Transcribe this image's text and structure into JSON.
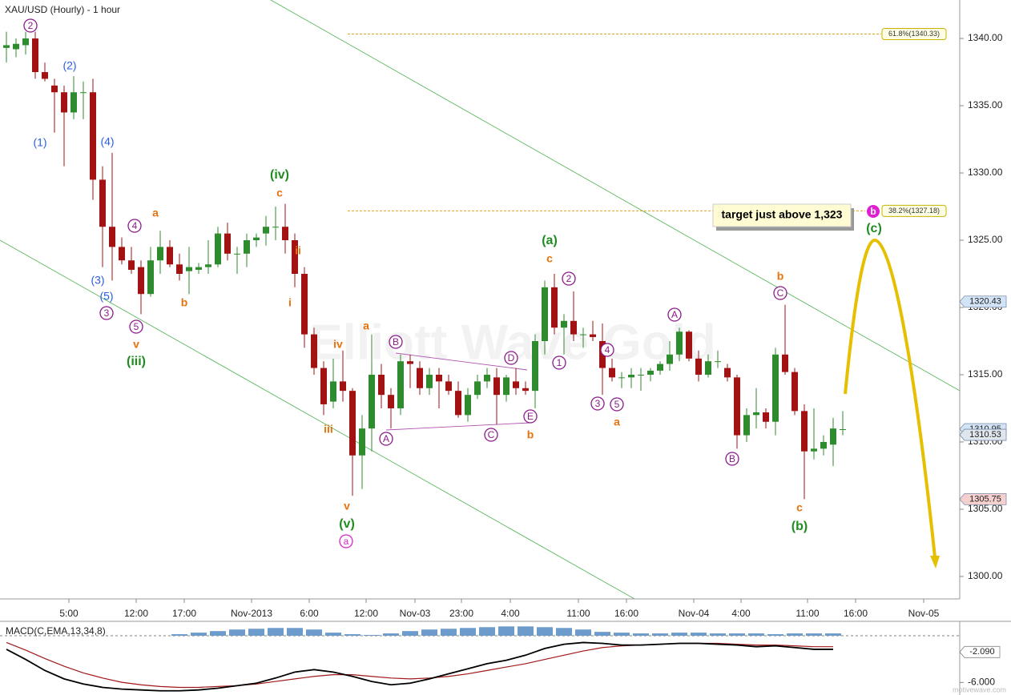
{
  "chart_data": [
    {
      "type": "candlestick",
      "title": "XAU/USD (Hourly) - 1 hour",
      "watermark": "Elliott Wave Gold",
      "credit": "motivewave.com",
      "callout": "target just above 1,323",
      "up_color": "#2e8b2e",
      "down_color": "#a31212",
      "ylim": [
        1298.33,
        1342.86
      ],
      "yticks": [
        {
          "value": 1300,
          "label": "1300.00"
        },
        {
          "value": 1305,
          "label": "1305.00"
        },
        {
          "value": 1310,
          "label": "1310.00"
        },
        {
          "value": 1315,
          "label": "1315.00"
        },
        {
          "value": 1320,
          "label": "1320.00"
        },
        {
          "value": 1325,
          "label": "1325.00"
        },
        {
          "value": 1330,
          "label": "1330.00"
        },
        {
          "value": 1335,
          "label": "1335.00"
        },
        {
          "value": 1340,
          "label": "1340.00"
        }
      ],
      "x_tick_labels": [
        "5:00",
        "12:00",
        "17:00",
        "Nov-2013",
        "6:00",
        "12:00",
        "Nov-03",
        "23:00",
        "4:00",
        "11:00",
        "16:00",
        "Nov-04",
        "4:00",
        "11:00",
        "16:00",
        "Nov-05"
      ],
      "open": [
        1339.3,
        1339.2,
        1339.5,
        1340,
        1337.5,
        1336.5,
        1336,
        1334.5,
        1336,
        1336,
        1329.5,
        1326,
        1324.5,
        1323.5,
        1323,
        1321,
        1323.5,
        1324.5,
        1323.2,
        1322.7,
        1322.8,
        1323,
        1323.2,
        1325.5,
        1324,
        1324,
        1325,
        1325.5,
        1326,
        1326,
        1325,
        1322.5,
        1318,
        1315.5,
        1313,
        1314.5,
        1313.8,
        1309,
        1311,
        1315,
        1313.5,
        1312.5,
        1316,
        1315.5,
        1314,
        1315,
        1314.5,
        1313.8,
        1312,
        1313.5,
        1314.5,
        1314.8,
        1313.5,
        1314.5,
        1314,
        1313.8,
        1317.5,
        1321.5,
        1318.5,
        1319,
        1318,
        1318,
        1317.5,
        1315.5,
        1314.8,
        1314.8,
        1315,
        1315,
        1315.3,
        1315.8,
        1316.5,
        1318.2,
        1316.2,
        1315,
        1316,
        1315.5,
        1314.8,
        1310.5,
        1312,
        1312.2,
        1311.5,
        1316.5,
        1315.2,
        1312.3,
        1309.3,
        1309.5,
        1309.8,
        1310.9
      ],
      "high": [
        1340.5,
        1340,
        1340.5,
        1340.5,
        1338.2,
        1337,
        1336.5,
        1337.2,
        1336.8,
        1337,
        1330.5,
        1331.5,
        1325.2,
        1324.5,
        1323.5,
        1324.5,
        1325.7,
        1325,
        1324,
        1324.5,
        1323.3,
        1325,
        1326,
        1326.3,
        1324.5,
        1325.5,
        1325.5,
        1326.8,
        1327.5,
        1327.7,
        1325.5,
        1323,
        1318.5,
        1316,
        1316.2,
        1316.8,
        1314,
        1312,
        1318,
        1315.8,
        1314,
        1316.5,
        1316.5,
        1316,
        1315.5,
        1315.5,
        1315,
        1314.5,
        1314,
        1315,
        1315.5,
        1315.5,
        1315,
        1315.5,
        1314.5,
        1318,
        1322,
        1322.5,
        1319.5,
        1321.2,
        1318.5,
        1319,
        1318.8,
        1316.2,
        1315.2,
        1315.5,
        1315.5,
        1315.5,
        1316,
        1317.5,
        1318.5,
        1318.3,
        1316.8,
        1316.5,
        1316.8,
        1315.8,
        1315,
        1312.5,
        1314,
        1312.5,
        1317,
        1320.2,
        1315.5,
        1312.8,
        1312.5,
        1310.5,
        1311.8,
        1312.3
      ],
      "low": [
        1338.2,
        1338.6,
        1338.8,
        1337,
        1336.8,
        1333,
        1330.5,
        1334,
        1334,
        1328,
        1323,
        1322,
        1323.2,
        1322.5,
        1319.5,
        1320.8,
        1322.5,
        1323,
        1322,
        1321,
        1322.5,
        1322.5,
        1323,
        1323.5,
        1322.5,
        1323,
        1324.5,
        1324.6,
        1325,
        1324,
        1321.5,
        1317,
        1315,
        1312,
        1312.5,
        1313,
        1306,
        1306.5,
        1309.3,
        1312.5,
        1311,
        1312,
        1314,
        1313.5,
        1313.5,
        1312.5,
        1313.5,
        1311.8,
        1311.5,
        1313.2,
        1314,
        1311.3,
        1313,
        1313.5,
        1313.5,
        1312.5,
        1316.5,
        1318,
        1316.5,
        1317.5,
        1317,
        1317.5,
        1313.5,
        1314.5,
        1314,
        1314,
        1313.8,
        1314.5,
        1315,
        1315.3,
        1316,
        1316,
        1314.5,
        1314.8,
        1315.5,
        1314.5,
        1309.5,
        1310,
        1311,
        1311,
        1310.5,
        1315,
        1312,
        1305.75,
        1308.7,
        1309,
        1308.2,
        1310.5
      ],
      "close": [
        1339.5,
        1339.6,
        1340,
        1337.5,
        1337,
        1336,
        1334.5,
        1336,
        1336,
        1329.5,
        1326,
        1324.5,
        1323.5,
        1322.8,
        1321,
        1323.5,
        1324.5,
        1323.2,
        1322.5,
        1323,
        1323,
        1323.2,
        1325.5,
        1324,
        1324,
        1325,
        1325.2,
        1326,
        1326,
        1325,
        1322.5,
        1318,
        1315.5,
        1312.8,
        1314.5,
        1313.8,
        1309,
        1311,
        1315,
        1313.5,
        1312.5,
        1316,
        1315.8,
        1314,
        1315,
        1314.5,
        1313.8,
        1312,
        1313.5,
        1314.5,
        1315,
        1313.5,
        1314.8,
        1314,
        1313.8,
        1317.5,
        1321.5,
        1318.5,
        1319,
        1318,
        1318,
        1317.8,
        1315.5,
        1314.8,
        1314.8,
        1315,
        1315,
        1315.3,
        1315.8,
        1316.5,
        1318.2,
        1316.2,
        1315,
        1316,
        1316,
        1314.8,
        1310.5,
        1312,
        1312.2,
        1311.5,
        1316.5,
        1315.2,
        1312.3,
        1309.3,
        1309.5,
        1310,
        1311,
        1310.95
      ],
      "price_markers": [
        {
          "value": 1320.43,
          "label": "1320.43",
          "color": "#d4e4f7"
        },
        {
          "value": 1310.95,
          "label": "1310.95",
          "color": "#d4e4f7"
        },
        {
          "value": 1310.53,
          "label": "1310.53",
          "color": "#dfe6ee"
        },
        {
          "value": 1305.75,
          "label": "1305.75",
          "color": "#f6cfcf"
        }
      ],
      "fib_levels": [
        {
          "value": 1340.33,
          "label": "61.8%(1340.33)",
          "color": "#e0a020"
        },
        {
          "value": 1327.18,
          "label": "38.2%(1327.18)",
          "color": "#e0a020"
        }
      ],
      "annotations": [
        {
          "text": "2",
          "color": "#8b1a8b",
          "style": "circled"
        },
        {
          "text": "(2)",
          "color": "#2a5de0"
        },
        {
          "text": "(1)",
          "color": "#2a5de0"
        },
        {
          "text": "(4)",
          "color": "#2a5de0"
        },
        {
          "text": "(3)",
          "color": "#2a5de0"
        },
        {
          "text": "(5)",
          "color": "#2a5de0"
        },
        {
          "text": "3",
          "color": "#8b1a8b",
          "style": "circled"
        },
        {
          "text": "4",
          "color": "#8b1a8b",
          "style": "circled"
        },
        {
          "text": "5",
          "color": "#8b1a8b",
          "style": "circled"
        },
        {
          "text": "v",
          "color": "#e8720c"
        },
        {
          "text": "(iii)",
          "color": "#1e8c1e"
        },
        {
          "text": "a",
          "color": "#e8720c"
        },
        {
          "text": "b",
          "color": "#e8720c"
        },
        {
          "text": "(iv)",
          "color": "#1e8c1e"
        },
        {
          "text": "c",
          "color": "#e8720c"
        },
        {
          "text": "ii",
          "color": "#e8720c"
        },
        {
          "text": "i",
          "color": "#e8720c"
        },
        {
          "text": "iv",
          "color": "#e8720c"
        },
        {
          "text": "iii",
          "color": "#e8720c"
        },
        {
          "text": "a",
          "color": "#e8720c"
        },
        {
          "text": "v",
          "color": "#e8720c"
        },
        {
          "text": "(v)",
          "color": "#1e8c1e"
        },
        {
          "text": "a",
          "color": "#e020d0",
          "style": "circled"
        },
        {
          "text": "B",
          "color": "#8b1a8b",
          "style": "circled"
        },
        {
          "text": "A",
          "color": "#8b1a8b",
          "style": "circled"
        },
        {
          "text": "C",
          "color": "#8b1a8b",
          "style": "circled"
        },
        {
          "text": "D",
          "color": "#8b1a8b",
          "style": "circled"
        },
        {
          "text": "E",
          "color": "#8b1a8b",
          "style": "circled"
        },
        {
          "text": "b",
          "color": "#e8720c"
        },
        {
          "text": "(a)",
          "color": "#1e8c1e"
        },
        {
          "text": "c",
          "color": "#e8720c"
        },
        {
          "text": "2",
          "color": "#8b1a8b",
          "style": "circled"
        },
        {
          "text": "1",
          "color": "#8b1a8b",
          "style": "circled"
        },
        {
          "text": "4",
          "color": "#8b1a8b",
          "style": "circled"
        },
        {
          "text": "3",
          "color": "#8b1a8b",
          "style": "circled"
        },
        {
          "text": "5",
          "color": "#8b1a8b",
          "style": "circled"
        },
        {
          "text": "a",
          "color": "#e8720c"
        },
        {
          "text": "A",
          "color": "#8b1a8b",
          "style": "circled"
        },
        {
          "text": "B",
          "color": "#8b1a8b",
          "style": "circled"
        },
        {
          "text": "b",
          "color": "#e8720c"
        },
        {
          "text": "C",
          "color": "#8b1a8b",
          "style": "circled"
        },
        {
          "text": "c",
          "color": "#e8720c"
        },
        {
          "text": "(b)",
          "color": "#1e8c1e"
        },
        {
          "text": "(c)",
          "color": "#1e8c1e"
        },
        {
          "text": "b",
          "color": "#e020d0",
          "style": "filled"
        }
      ]
    },
    {
      "type": "macd",
      "title": "MACD(C,EMA,13,34,8)",
      "ylim": [
        -7.61,
        1.85
      ],
      "yticks": [
        {
          "value": -6,
          "label": "-6.000"
        }
      ],
      "value_marker": {
        "value": -2.09,
        "label": "-2.090"
      },
      "histogram": {
        "color": "#6d9ccc",
        "values": [
          0,
          0,
          0,
          0,
          0,
          0,
          0,
          0,
          0,
          0.2,
          0.4,
          0.6,
          0.8,
          0.9,
          1.0,
          1.0,
          0.8,
          0.4,
          0.2,
          0.1,
          0.3,
          0.6,
          0.8,
          0.9,
          1.0,
          1.1,
          1.2,
          1.2,
          1.1,
          1.0,
          0.8,
          0.5,
          0.4,
          0.3,
          0.3,
          0.4,
          0.4,
          0.3,
          0.3,
          0.3,
          0.2,
          0.3,
          0.3,
          0.3
        ]
      },
      "macd": {
        "color": "#000000",
        "values": [
          -1.74,
          -3.04,
          -4.46,
          -5.54,
          -6.2,
          -6.63,
          -6.85,
          -6.96,
          -7.07,
          -7.07,
          -6.96,
          -6.74,
          -6.41,
          -6.09,
          -5.43,
          -4.67,
          -4.35,
          -4.67,
          -5.22,
          -5.87,
          -6.3,
          -6.09,
          -5.54,
          -4.89,
          -4.24,
          -3.59,
          -3.15,
          -2.5,
          -1.63,
          -1.09,
          -0.87,
          -0.98,
          -1.2,
          -1.2,
          -1.09,
          -0.98,
          -0.98,
          -1.09,
          -1.2,
          -1.41,
          -1.3,
          -1.52,
          -1.74,
          -1.74
        ]
      },
      "signal": {
        "color": "#a01818",
        "values": [
          -0.87,
          -1.85,
          -2.93,
          -3.91,
          -4.78,
          -5.43,
          -5.98,
          -6.3,
          -6.52,
          -6.63,
          -6.63,
          -6.52,
          -6.41,
          -6.2,
          -5.87,
          -5.54,
          -5.22,
          -5.0,
          -5.0,
          -5.22,
          -5.43,
          -5.54,
          -5.43,
          -5.22,
          -4.89,
          -4.46,
          -4.02,
          -3.59,
          -3.04,
          -2.5,
          -1.96,
          -1.52,
          -1.3,
          -1.2,
          -1.09,
          -0.98,
          -0.98,
          -0.98,
          -1.09,
          -1.2,
          -1.2,
          -1.3,
          -1.41,
          -1.41
        ]
      }
    }
  ]
}
